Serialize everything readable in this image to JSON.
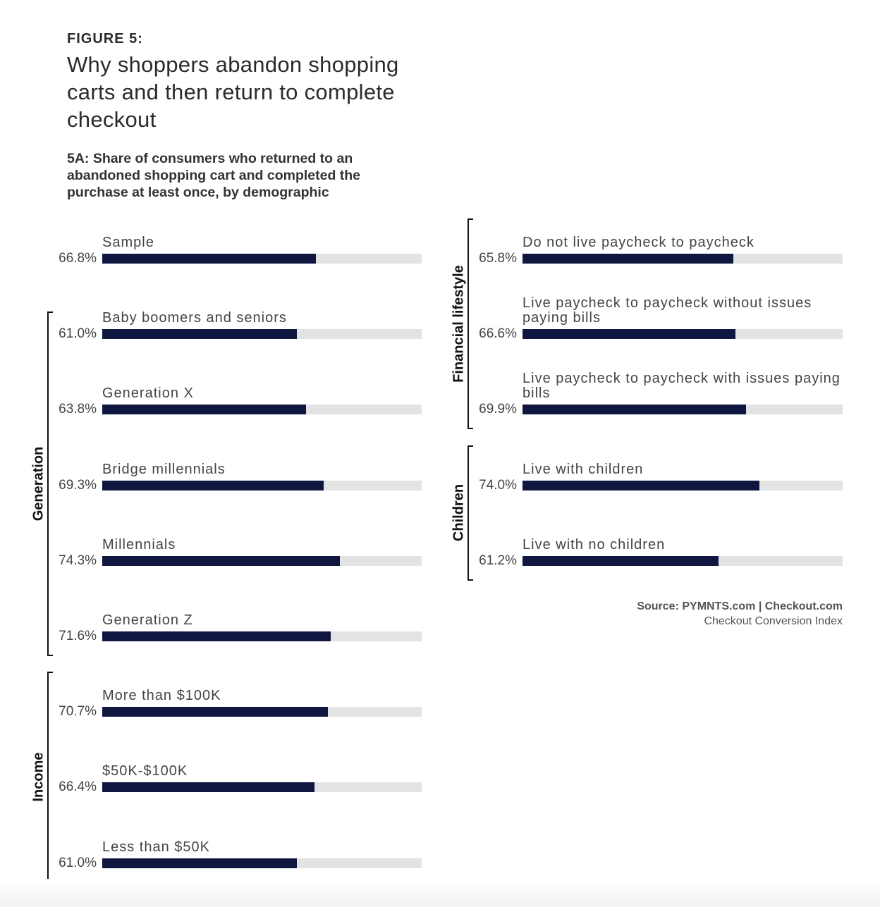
{
  "figure_label": "FIGURE 5:",
  "title": "Why shoppers abandon shopping carts and then return to complete checkout",
  "chart_data": {
    "type": "bar",
    "orientation": "horizontal",
    "title": "5A: Share of consumers who returned to an abandoned shopping cart and completed the purchase at least once, by demographic",
    "xlim": [
      0,
      100
    ],
    "unit": "%",
    "colors": {
      "bar": "#0f1640",
      "track": "#e3e3e3"
    },
    "groups": [
      {
        "name": "",
        "column": "left",
        "items": [
          {
            "label": "Sample",
            "value": 66.8,
            "display": "66.8%"
          }
        ]
      },
      {
        "name": "Generation",
        "column": "left",
        "items": [
          {
            "label": "Baby boomers and seniors",
            "value": 61.0,
            "display": "61.0%"
          },
          {
            "label": "Generation X",
            "value": 63.8,
            "display": "63.8%"
          },
          {
            "label": "Bridge millennials",
            "value": 69.3,
            "display": "69.3%"
          },
          {
            "label": "Millennials",
            "value": 74.3,
            "display": "74.3%"
          },
          {
            "label": "Generation Z",
            "value": 71.6,
            "display": "71.6%"
          }
        ]
      },
      {
        "name": "Income",
        "column": "left",
        "items": [
          {
            "label": "More than $100K",
            "value": 70.7,
            "display": "70.7%"
          },
          {
            "label": "$50K-$100K",
            "value": 66.4,
            "display": "66.4%"
          },
          {
            "label": "Less than $50K",
            "value": 61.0,
            "display": "61.0%"
          }
        ]
      },
      {
        "name": "Financial lifestyle",
        "column": "right",
        "items": [
          {
            "label": "Do not live paycheck to paycheck",
            "value": 65.8,
            "display": "65.8%"
          },
          {
            "label": "Live paycheck to paycheck without issues paying bills",
            "value": 66.6,
            "display": "66.6%"
          },
          {
            "label": "Live paycheck to paycheck with issues paying bills",
            "value": 69.9,
            "display": "69.9%"
          }
        ]
      },
      {
        "name": "Children",
        "column": "right",
        "items": [
          {
            "label": "Live with children",
            "value": 74.0,
            "display": "74.0%"
          },
          {
            "label": "Live with no children",
            "value": 61.2,
            "display": "61.2%"
          }
        ]
      }
    ]
  },
  "source": {
    "line1_a": "Source: PYMNTS.com",
    "sep": "|",
    "line1_b": "Checkout.com",
    "line2": "Checkout Conversion Index"
  }
}
